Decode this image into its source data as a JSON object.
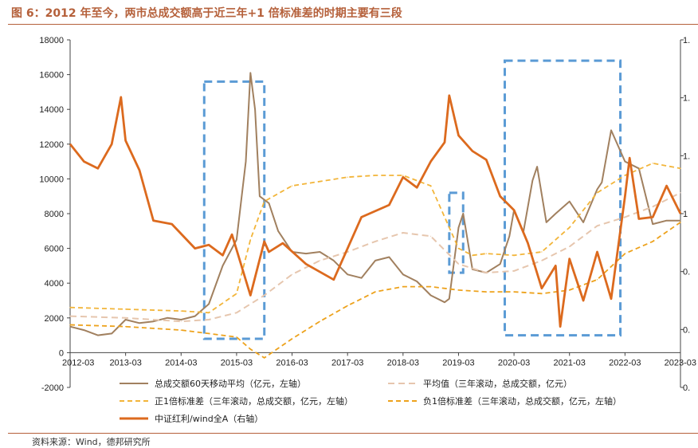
{
  "title": "图 6：2012 年至今，两市总成交额高于近三年+1 倍标准差的时期主要有三段",
  "source": "资料来源：Wind，德邦研究所",
  "colors": {
    "title": "#b5603a",
    "volume": "#a1805f",
    "mean": "#e6c6ae",
    "plus": "#f2b53a",
    "minus": "#eda21c",
    "index": "#dc6a1e",
    "box": "#5b9bd5"
  },
  "chart_data": {
    "type": "line",
    "left_axis": {
      "ylim": [
        -2000,
        18000
      ],
      "ticks": [
        "18000",
        "16000",
        "14000",
        "12000",
        "10000",
        "8000",
        "6000",
        "4000",
        "2000",
        "0",
        "-2000"
      ]
    },
    "right_axis": {
      "ticks": [
        "1.",
        "1.",
        "1.",
        "1",
        "0.",
        "0.",
        "0."
      ]
    },
    "x_ticks": [
      "2012-03",
      "2013-03",
      "2014-03",
      "2015-03",
      "2016-03",
      "2017-03",
      "2018-03",
      "2019-03",
      "2020-03",
      "2021-03",
      "2022-03",
      "2023-03"
    ],
    "legend": [
      "总成交额60天移动平均（亿元，左轴）",
      "平均值（三年滚动，总成交额，亿元）",
      "正1倍标准差（三年滚动，总成交额，亿元，左轴）",
      "负1倍标准差（三年滚动，总成交额，亿元，左轴）",
      "中证红利/wind全A（右轴）"
    ],
    "series": [
      {
        "name": "总成交额60天移动平均（亿元，左轴）",
        "axis": "left",
        "x": [
          "2012-03",
          "2012-06",
          "2012-09",
          "2012-12",
          "2013-03",
          "2013-06",
          "2013-09",
          "2013-12",
          "2014-03",
          "2014-06",
          "2014-09",
          "2014-12",
          "2015-03",
          "2015-05",
          "2015-06",
          "2015-07",
          "2015-08",
          "2015-10",
          "2015-12",
          "2016-03",
          "2016-06",
          "2016-09",
          "2016-12",
          "2017-03",
          "2017-06",
          "2017-09",
          "2017-12",
          "2018-03",
          "2018-06",
          "2018-09",
          "2018-12",
          "2019-01",
          "2019-03",
          "2019-04",
          "2019-06",
          "2019-09",
          "2019-12",
          "2020-02",
          "2020-03",
          "2020-05",
          "2020-07",
          "2020-08",
          "2020-10",
          "2020-12",
          "2021-03",
          "2021-06",
          "2021-09",
          "2021-10",
          "2021-12",
          "2022-03",
          "2022-06",
          "2022-09",
          "2022-12",
          "2023-03"
        ],
        "y": [
          1500,
          1300,
          1000,
          1100,
          1900,
          1700,
          1800,
          2000,
          1900,
          2100,
          2800,
          5000,
          6500,
          11000,
          16100,
          14000,
          9000,
          8600,
          7000,
          5800,
          5700,
          5800,
          5300,
          4500,
          4300,
          5300,
          5500,
          4500,
          4100,
          3300,
          2900,
          3100,
          7200,
          8000,
          4800,
          4600,
          5100,
          6700,
          8200,
          6900,
          9900,
          10700,
          7500,
          8000,
          8700,
          7500,
          9400,
          9800,
          12800,
          11000,
          10600,
          7400,
          7600,
          7600
        ]
      },
      {
        "name": "平均值（三年滚动，总成交额，亿元）",
        "axis": "left",
        "x": [
          "2012-03",
          "2013-03",
          "2014-03",
          "2014-09",
          "2015-03",
          "2015-09",
          "2016-03",
          "2016-09",
          "2017-03",
          "2017-09",
          "2018-03",
          "2018-09",
          "2019-03",
          "2019-09",
          "2020-03",
          "2020-09",
          "2021-03",
          "2021-09",
          "2022-03",
          "2022-09",
          "2023-03"
        ],
        "y": [
          2100,
          2000,
          1800,
          1900,
          2300,
          3300,
          4500,
          5300,
          5800,
          6400,
          6900,
          6700,
          5100,
          4600,
          4700,
          5300,
          6100,
          7300,
          7800,
          8400,
          9200
        ]
      },
      {
        "name": "正1倍标准差（三年滚动，总成交额，亿元，左轴）",
        "axis": "left",
        "x": [
          "2012-03",
          "2013-03",
          "2014-03",
          "2014-09",
          "2015-03",
          "2015-06",
          "2015-09",
          "2016-03",
          "2017-03",
          "2017-09",
          "2018-03",
          "2018-09",
          "2019-03",
          "2019-06",
          "2019-09",
          "2020-03",
          "2020-09",
          "2021-03",
          "2021-09",
          "2022-03",
          "2022-09",
          "2023-03"
        ],
        "y": [
          2600,
          2500,
          2400,
          2300,
          3400,
          6500,
          8700,
          9600,
          10100,
          10200,
          10200,
          9600,
          6000,
          5600,
          5700,
          5600,
          5800,
          7200,
          9200,
          10200,
          10900,
          10600
        ]
      },
      {
        "name": "负1倍标准差（三年滚动，总成交额，亿元，左轴）",
        "axis": "left",
        "x": [
          "2012-03",
          "2013-03",
          "2014-03",
          "2014-09",
          "2015-03",
          "2015-06",
          "2015-09",
          "2016-03",
          "2016-09",
          "2017-03",
          "2017-09",
          "2018-03",
          "2018-09",
          "2019-03",
          "2019-09",
          "2020-03",
          "2020-09",
          "2021-03",
          "2021-09",
          "2022-03",
          "2022-09",
          "2023-03"
        ],
        "y": [
          1600,
          1500,
          1300,
          1100,
          900,
          200,
          -300,
          800,
          1800,
          2700,
          3500,
          3800,
          3800,
          3600,
          3500,
          3500,
          3400,
          3600,
          4200,
          5700,
          6400,
          7500
        ]
      },
      {
        "name": "中证红利/wind全A（右轴）",
        "axis": "right",
        "x": [
          "2012-03",
          "2012-06",
          "2012-09",
          "2012-12",
          "2013-02",
          "2013-03",
          "2013-06",
          "2013-09",
          "2014-01",
          "2014-06",
          "2014-09",
          "2014-12",
          "2015-02",
          "2015-06",
          "2015-09",
          "2015-10",
          "2016-01",
          "2016-06",
          "2016-12",
          "2017-06",
          "2017-12",
          "2018-03",
          "2018-06",
          "2018-09",
          "2018-12",
          "2019-01",
          "2019-03",
          "2019-06",
          "2019-09",
          "2019-12",
          "2020-03",
          "2020-06",
          "2020-09",
          "2020-12",
          "2021-01",
          "2021-03",
          "2021-06",
          "2021-09",
          "2021-12",
          "2022-03",
          "2022-04",
          "2022-06",
          "2022-09",
          "2022-12",
          "2023-03"
        ],
        "y": [
          12000,
          11000,
          10600,
          12000,
          14700,
          12200,
          10500,
          7600,
          7400,
          6000,
          6200,
          5600,
          6800,
          3300,
          6400,
          5800,
          6300,
          5100,
          4200,
          7800,
          8500,
          10100,
          9500,
          11000,
          12100,
          14800,
          12500,
          11600,
          11100,
          9000,
          8200,
          6300,
          3700,
          5000,
          1500,
          5400,
          3000,
          5800,
          3100,
          9000,
          11200,
          7700,
          7800,
          9600,
          8000
        ]
      }
    ]
  }
}
